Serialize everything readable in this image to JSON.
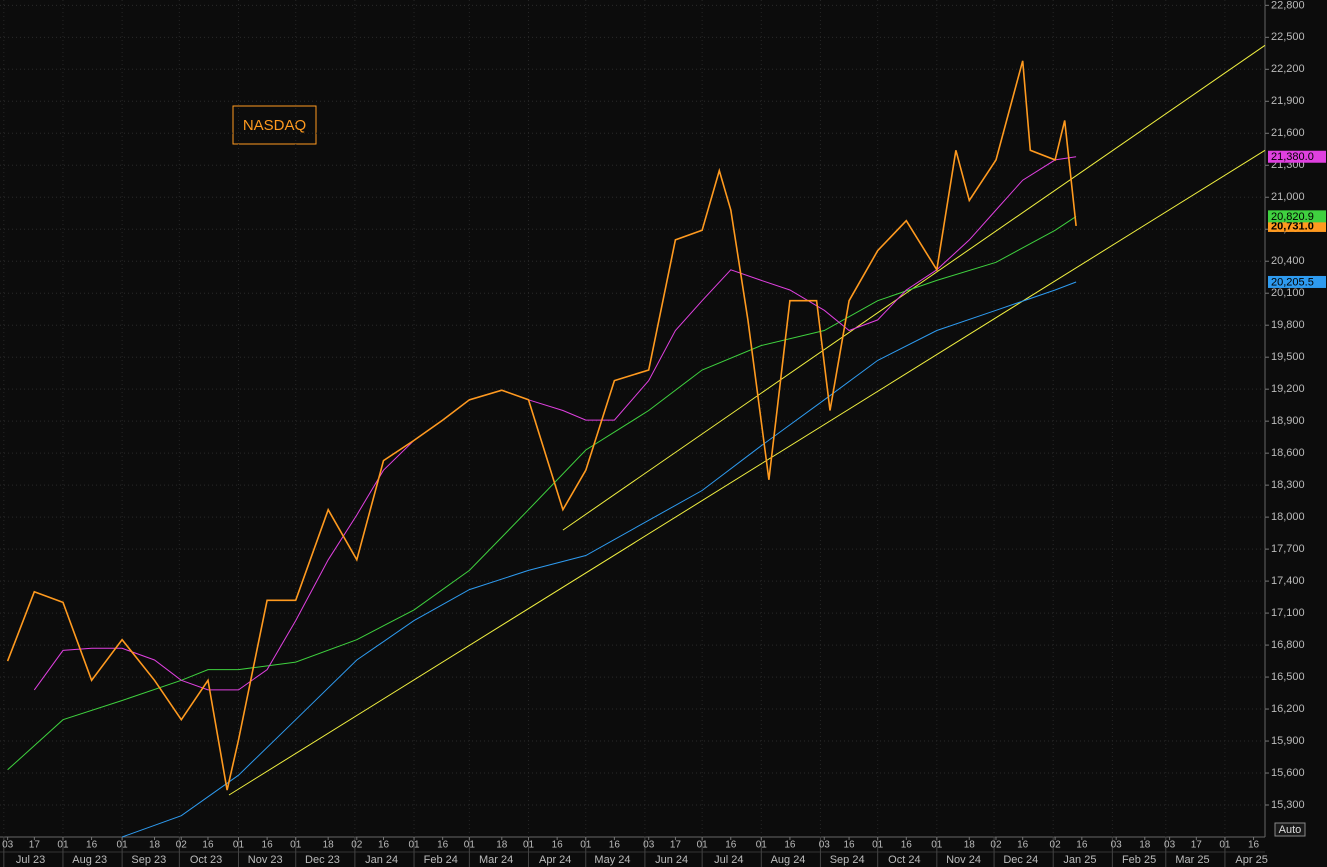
{
  "chart_data": {
    "type": "line",
    "annotation": "NASDAQ",
    "auto_button": "Auto",
    "xlim": [
      "2023-06-29",
      "2025-04-22"
    ],
    "ylim": [
      15000,
      22850
    ],
    "yticks": [
      {
        "value": 15300,
        "label": "15,300"
      },
      {
        "value": 15600,
        "label": "15,600"
      },
      {
        "value": 15900,
        "label": "15,900"
      },
      {
        "value": 16200,
        "label": "16,200"
      },
      {
        "value": 16500,
        "label": "16,500"
      },
      {
        "value": 16800,
        "label": "16,800"
      },
      {
        "value": 17100,
        "label": "17,100"
      },
      {
        "value": 17400,
        "label": "17,400"
      },
      {
        "value": 17700,
        "label": "17,700"
      },
      {
        "value": 18000,
        "label": "18,000"
      },
      {
        "value": 18300,
        "label": "18,300"
      },
      {
        "value": 18600,
        "label": "18,600"
      },
      {
        "value": 18900,
        "label": "18,900"
      },
      {
        "value": 19200,
        "label": "19,200"
      },
      {
        "value": 19500,
        "label": "19,500"
      },
      {
        "value": 19800,
        "label": "19,800"
      },
      {
        "value": 20100,
        "label": "20,100"
      },
      {
        "value": 20400,
        "label": "20,400"
      },
      {
        "value": 20700,
        "label": "20,700"
      },
      {
        "value": 21000,
        "label": "21,000"
      },
      {
        "value": 21300,
        "label": "21,300"
      },
      {
        "value": 21600,
        "label": "21,600"
      },
      {
        "value": 21900,
        "label": "21,900"
      },
      {
        "value": 22200,
        "label": "22,200"
      },
      {
        "value": 22500,
        "label": "22,500"
      },
      {
        "value": 22800,
        "label": "22,800"
      }
    ],
    "xticks": [
      {
        "value": "2023-07-03",
        "label": "03"
      },
      {
        "value": "2023-07-17",
        "label": "17"
      },
      {
        "value": "2023-08-01",
        "label": "01"
      },
      {
        "value": "2023-08-16",
        "label": "16"
      },
      {
        "value": "2023-09-01",
        "label": "01"
      },
      {
        "value": "2023-09-18",
        "label": "18"
      },
      {
        "value": "2023-10-02",
        "label": "02"
      },
      {
        "value": "2023-10-16",
        "label": "16"
      },
      {
        "value": "2023-11-01",
        "label": "01"
      },
      {
        "value": "2023-11-16",
        "label": "16"
      },
      {
        "value": "2023-12-01",
        "label": "01"
      },
      {
        "value": "2023-12-18",
        "label": "18"
      },
      {
        "value": "2024-01-02",
        "label": "02"
      },
      {
        "value": "2024-01-16",
        "label": "16"
      },
      {
        "value": "2024-02-01",
        "label": "01"
      },
      {
        "value": "2024-02-16",
        "label": "16"
      },
      {
        "value": "2024-03-01",
        "label": "01"
      },
      {
        "value": "2024-03-18",
        "label": "18"
      },
      {
        "value": "2024-04-01",
        "label": "01"
      },
      {
        "value": "2024-04-16",
        "label": "16"
      },
      {
        "value": "2024-05-01",
        "label": "01"
      },
      {
        "value": "2024-05-16",
        "label": "16"
      },
      {
        "value": "2024-06-03",
        "label": "03"
      },
      {
        "value": "2024-06-17",
        "label": "17"
      },
      {
        "value": "2024-07-01",
        "label": "01"
      },
      {
        "value": "2024-07-16",
        "label": "16"
      },
      {
        "value": "2024-08-01",
        "label": "01"
      },
      {
        "value": "2024-08-16",
        "label": "16"
      },
      {
        "value": "2024-09-03",
        "label": "03"
      },
      {
        "value": "2024-09-16",
        "label": "16"
      },
      {
        "value": "2024-10-01",
        "label": "01"
      },
      {
        "value": "2024-10-16",
        "label": "16"
      },
      {
        "value": "2024-11-01",
        "label": "01"
      },
      {
        "value": "2024-11-18",
        "label": "18"
      },
      {
        "value": "2024-12-02",
        "label": "02"
      },
      {
        "value": "2024-12-16",
        "label": "16"
      },
      {
        "value": "2025-01-02",
        "label": "02"
      },
      {
        "value": "2025-01-16",
        "label": "16"
      },
      {
        "value": "2025-02-03",
        "label": "03"
      },
      {
        "value": "2025-02-18",
        "label": "18"
      },
      {
        "value": "2025-03-03",
        "label": "03"
      },
      {
        "value": "2025-03-17",
        "label": "17"
      },
      {
        "value": "2025-04-01",
        "label": "01"
      },
      {
        "value": "2025-04-16",
        "label": "16"
      }
    ],
    "month_labels": [
      {
        "value": "2023-07-15",
        "label": "Jul 23"
      },
      {
        "value": "2023-08-15",
        "label": "Aug 23"
      },
      {
        "value": "2023-09-15",
        "label": "Sep 23"
      },
      {
        "value": "2023-10-15",
        "label": "Oct 23"
      },
      {
        "value": "2023-11-15",
        "label": "Nov 23"
      },
      {
        "value": "2023-12-15",
        "label": "Dec 23"
      },
      {
        "value": "2024-01-15",
        "label": "Jan 24"
      },
      {
        "value": "2024-02-15",
        "label": "Feb 24"
      },
      {
        "value": "2024-03-15",
        "label": "Mar 24"
      },
      {
        "value": "2024-04-15",
        "label": "Apr 24"
      },
      {
        "value": "2024-05-15",
        "label": "May 24"
      },
      {
        "value": "2024-06-15",
        "label": "Jun 24"
      },
      {
        "value": "2024-07-15",
        "label": "Jul 24"
      },
      {
        "value": "2024-08-15",
        "label": "Aug 24"
      },
      {
        "value": "2024-09-15",
        "label": "Sep 24"
      },
      {
        "value": "2024-10-15",
        "label": "Oct 24"
      },
      {
        "value": "2024-11-15",
        "label": "Nov 24"
      },
      {
        "value": "2024-12-15",
        "label": "Dec 24"
      },
      {
        "value": "2025-01-15",
        "label": "Jan 25"
      },
      {
        "value": "2025-02-15",
        "label": "Feb 25"
      },
      {
        "value": "2025-03-15",
        "label": "Mar 25"
      },
      {
        "value": "2025-04-15",
        "label": "Apr 25"
      }
    ],
    "grid": true,
    "series": [
      {
        "color": "#ff9a1f",
        "x": [
          "2023-07-03",
          "2023-07-17",
          "2023-08-01",
          "2023-08-16",
          "2023-09-01",
          "2023-09-18",
          "2023-10-02",
          "2023-10-16",
          "2023-10-26",
          "2023-11-01",
          "2023-11-16",
          "2023-12-01",
          "2023-12-18",
          "2024-01-02",
          "2024-01-16",
          "2024-02-01",
          "2024-02-16",
          "2024-03-01",
          "2024-03-18",
          "2024-04-01",
          "2024-04-19",
          "2024-05-01",
          "2024-05-16",
          "2024-06-03",
          "2024-06-17",
          "2024-07-01",
          "2024-07-10",
          "2024-07-16",
          "2024-07-25",
          "2024-08-05",
          "2024-08-16",
          "2024-08-30",
          "2024-09-06",
          "2024-09-16",
          "2024-10-01",
          "2024-10-16",
          "2024-11-01",
          "2024-11-11",
          "2024-11-18",
          "2024-12-02",
          "2024-12-16",
          "2024-12-20",
          "2025-01-02",
          "2025-01-07",
          "2025-01-13"
        ],
        "values": [
          16650,
          17300,
          17200,
          16470,
          16850,
          16470,
          16100,
          16470,
          15440,
          15910,
          17220,
          17220,
          18070,
          17600,
          18530,
          18720,
          18910,
          19100,
          19190,
          19100,
          18070,
          18440,
          19280,
          19380,
          20600,
          20690,
          21250,
          20880,
          19850,
          18350,
          20030,
          20030,
          19000,
          20030,
          20500,
          20780,
          20320,
          21440,
          20970,
          21350,
          22280,
          21440,
          21350,
          21720,
          20731.0
        ],
        "end_value": 20731.0,
        "end_label": "20,731.0"
      },
      {
        "color": "#e040e0",
        "x": [
          "2023-07-17",
          "2023-08-01",
          "2023-08-16",
          "2023-09-01",
          "2023-09-18",
          "2023-10-02",
          "2023-10-16",
          "2023-11-01",
          "2023-11-16",
          "2023-12-01",
          "2023-12-18",
          "2024-01-02",
          "2024-01-16",
          "2024-02-01",
          "2024-02-16",
          "2024-03-01",
          "2024-03-18",
          "2024-04-01",
          "2024-04-19",
          "2024-05-01",
          "2024-05-16",
          "2024-06-03",
          "2024-06-17",
          "2024-07-01",
          "2024-07-16",
          "2024-08-01",
          "2024-08-16",
          "2024-09-03",
          "2024-09-16",
          "2024-10-01",
          "2024-10-16",
          "2024-11-01",
          "2024-11-18",
          "2024-12-02",
          "2024-12-16",
          "2025-01-02",
          "2025-01-13"
        ],
        "values": [
          16380,
          16750,
          16770,
          16770,
          16660,
          16470,
          16380,
          16380,
          16570,
          17030,
          17600,
          18020,
          18440,
          18720,
          18910,
          19100,
          19190,
          19100,
          19000,
          18910,
          18910,
          19280,
          19750,
          20030,
          20320,
          20220,
          20130,
          19940,
          19750,
          19850,
          20130,
          20320,
          20600,
          20880,
          21160,
          21350,
          21380.0
        ],
        "end_value": 21380.0,
        "end_label": "21,380.0"
      },
      {
        "color": "#3fd13f",
        "x": [
          "2023-07-03",
          "2023-08-01",
          "2023-09-01",
          "2023-10-02",
          "2023-10-16",
          "2023-11-01",
          "2023-12-01",
          "2024-01-02",
          "2024-02-01",
          "2024-03-01",
          "2024-04-01",
          "2024-05-01",
          "2024-06-03",
          "2024-07-01",
          "2024-08-01",
          "2024-09-03",
          "2024-10-01",
          "2024-11-01",
          "2024-12-02",
          "2025-01-02",
          "2025-01-13"
        ],
        "values": [
          15630,
          16100,
          16280,
          16470,
          16570,
          16570,
          16640,
          16850,
          17130,
          17500,
          18070,
          18630,
          19000,
          19380,
          19610,
          19750,
          20030,
          20220,
          20390,
          20690,
          20820.9
        ],
        "end_value": 20820.9,
        "end_label": "20,820.9"
      },
      {
        "color": "#2e9bf0",
        "x": [
          "2023-09-01",
          "2023-10-02",
          "2023-11-01",
          "2023-12-01",
          "2024-01-02",
          "2024-02-01",
          "2024-03-01",
          "2024-04-01",
          "2024-05-01",
          "2024-06-03",
          "2024-07-01",
          "2024-08-01",
          "2024-09-03",
          "2024-10-01",
          "2024-11-01",
          "2024-12-02",
          "2025-01-02",
          "2025-01-13"
        ],
        "values": [
          15000,
          15200,
          15580,
          16100,
          16660,
          17030,
          17320,
          17500,
          17640,
          17970,
          18250,
          18670,
          19100,
          19470,
          19750,
          19940,
          20130,
          20205.5
        ],
        "end_value": 20205.5,
        "end_label": "20,205.5"
      }
    ],
    "trendlines": [
      {
        "color": "#f0f040",
        "x": [
          "2023-10-27",
          "2025-04-22"
        ],
        "values": [
          15394,
          21440
        ]
      },
      {
        "color": "#f0f040",
        "x": [
          "2024-04-19",
          "2025-04-22"
        ],
        "values": [
          17878,
          22425
        ]
      }
    ]
  }
}
